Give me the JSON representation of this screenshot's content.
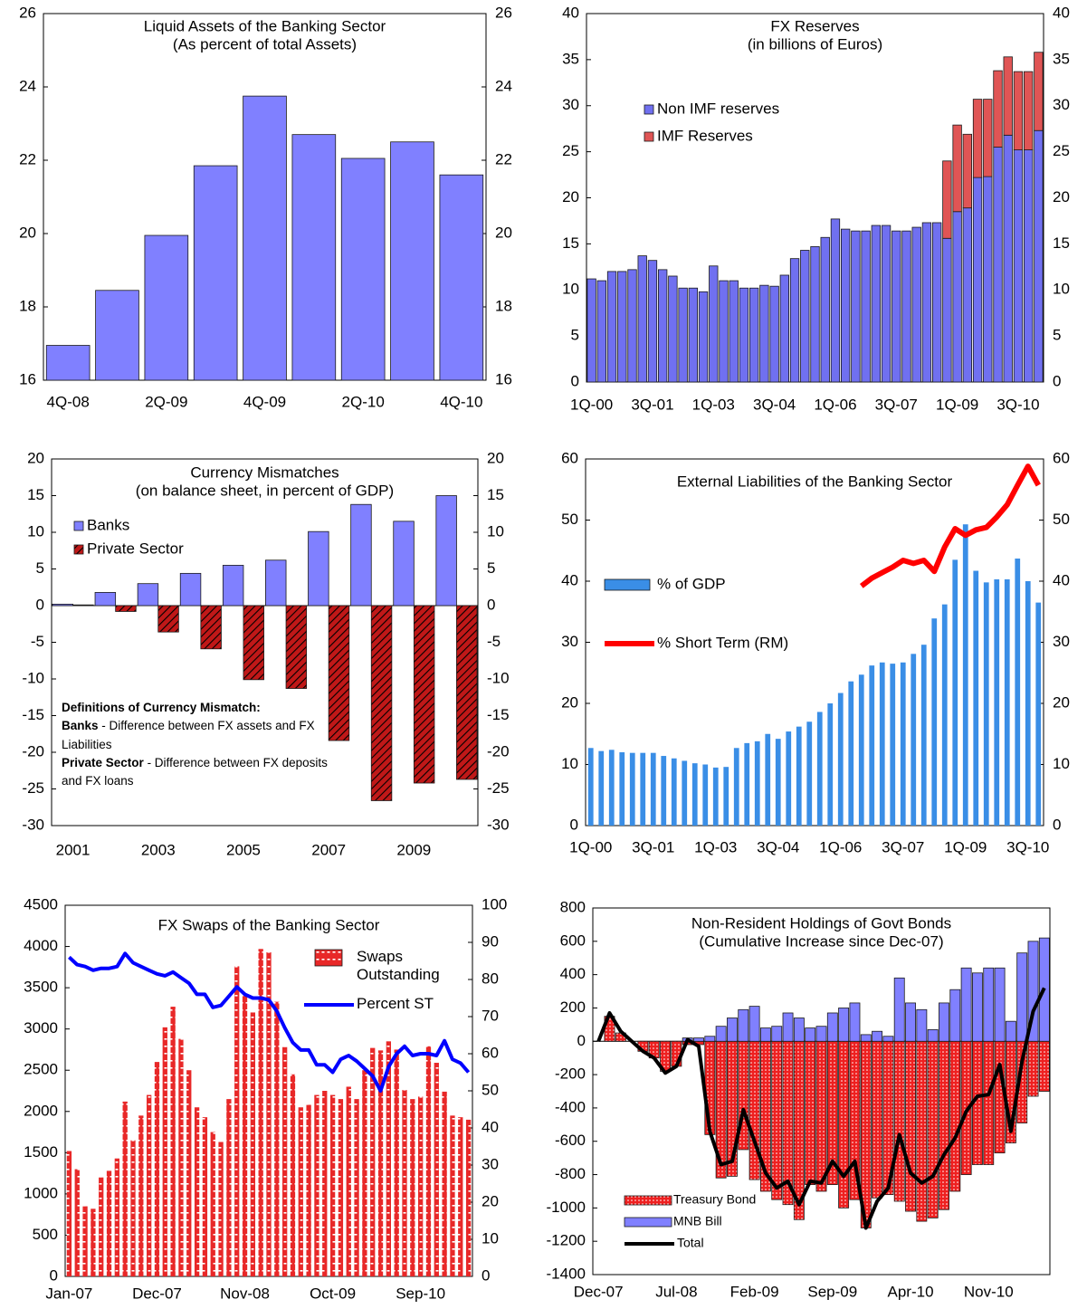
{
  "chart_data": [
    {
      "type": "bar",
      "title": "Liquid Assets of the Banking Sector",
      "subtitle": "(As percent of total Assets)",
      "categories": [
        "4Q-08",
        null,
        "2Q-09",
        null,
        "4Q-09",
        null,
        "2Q-10",
        null,
        "4Q-10"
      ],
      "values": [
        16.95,
        18.45,
        19.95,
        21.85,
        23.75,
        22.7,
        22.05,
        22.5,
        21.6
      ],
      "color": "#8080ff",
      "ylim": [
        16,
        26
      ],
      "yticks": [
        16,
        18,
        20,
        22,
        24,
        26
      ],
      "y2lim": [
        16,
        26
      ],
      "y2ticks": [
        16,
        18,
        20,
        22,
        24,
        26
      ]
    },
    {
      "type": "stacked_bar",
      "title": "FX Reserves",
      "subtitle": "(in billions of Euros)",
      "categories": [
        "1Q-00",
        null,
        null,
        null,
        null,
        null,
        "3Q-01",
        null,
        null,
        null,
        null,
        null,
        "1Q-03",
        null,
        null,
        null,
        null,
        null,
        "3Q-04",
        null,
        null,
        null,
        null,
        null,
        "1Q-06",
        null,
        null,
        null,
        null,
        null,
        "3Q-07",
        null,
        null,
        null,
        null,
        null,
        "1Q-09",
        null,
        null,
        null,
        null,
        null,
        "3Q-10",
        null,
        null
      ],
      "series": [
        {
          "name": "Non IMF reserves",
          "color": "#7070f0",
          "type": "bar",
          "values": [
            11.2,
            11.0,
            12.0,
            12.0,
            12.2,
            13.7,
            13.2,
            12.2,
            11.5,
            10.2,
            10.2,
            9.8,
            12.6,
            11.0,
            11.0,
            10.2,
            10.2,
            10.5,
            10.4,
            11.6,
            13.4,
            14.3,
            14.7,
            15.7,
            17.7,
            16.6,
            16.4,
            16.4,
            17.0,
            17.0,
            16.4,
            16.4,
            16.8,
            17.3,
            17.3,
            15.6,
            18.5,
            18.9,
            22.2,
            22.3,
            25.5,
            26.8,
            25.2,
            25.2,
            27.3
          ]
        },
        {
          "name": "IMF Reserves",
          "color": "#e05555",
          "type": "bar",
          "values": [
            null,
            null,
            null,
            null,
            null,
            null,
            null,
            null,
            null,
            null,
            null,
            null,
            null,
            null,
            null,
            null,
            null,
            null,
            null,
            null,
            null,
            null,
            null,
            null,
            null,
            null,
            null,
            null,
            null,
            null,
            null,
            null,
            null,
            null,
            null,
            8.4,
            9.4,
            8.0,
            8.5,
            8.4,
            8.3,
            8.5,
            8.5,
            8.5,
            8.5
          ]
        }
      ],
      "ylim": [
        0,
        40
      ],
      "yticks": [
        0,
        5,
        10,
        15,
        20,
        25,
        30,
        35,
        40
      ],
      "y2lim": [
        0,
        40
      ],
      "y2ticks": [
        0,
        5,
        10,
        15,
        20,
        25,
        30,
        35,
        40
      ]
    },
    {
      "type": "grouped_bar",
      "title": "Currency Mismatches",
      "subtitle": "(on balance sheet, in percent of GDP)",
      "categories": [
        "2001",
        null,
        "2003",
        null,
        "2005",
        null,
        "2007",
        null,
        "2009",
        null
      ],
      "series": [
        {
          "name": "Banks",
          "color": "#8080ff",
          "type": "bar",
          "values": [
            0.2,
            1.8,
            3.0,
            4.4,
            5.5,
            6.2,
            10.1,
            13.8,
            11.5,
            15.0
          ]
        },
        {
          "name": "Private Sector",
          "color": "#c01818",
          "type": "bar",
          "pattern": "hatch",
          "values": [
            0.1,
            -0.8,
            -3.6,
            -5.9,
            -10.1,
            -11.3,
            -18.4,
            -26.6,
            -24.2,
            -23.7
          ]
        }
      ],
      "annotation": {
        "heading": "Definitions of Currency Mismatch:",
        "notes": [
          {
            "term": "Banks",
            "text": "- Difference between FX assets and FX Liabilities"
          },
          {
            "term": "Private Sector",
            "text": "- Difference between FX deposits and FX loans"
          }
        ]
      },
      "ylim": [
        -30,
        20
      ],
      "yticks": [
        -30,
        -25,
        -20,
        -15,
        -10,
        -5,
        0,
        5,
        10,
        15,
        20
      ],
      "y2lim": [
        -30,
        20
      ],
      "y2ticks": [
        -30,
        -25,
        -20,
        -15,
        -10,
        -5,
        0,
        5,
        10,
        15,
        20
      ]
    },
    {
      "type": "combo",
      "title": "External Liabilities of the Banking Sector",
      "categories": [
        "1Q-00",
        null,
        null,
        null,
        null,
        null,
        "3Q-01",
        null,
        null,
        null,
        null,
        null,
        "1Q-03",
        null,
        null,
        null,
        null,
        null,
        "3Q-04",
        null,
        null,
        null,
        null,
        null,
        "1Q-06",
        null,
        null,
        null,
        null,
        null,
        "3Q-07",
        null,
        null,
        null,
        null,
        null,
        "1Q-09",
        null,
        null,
        null,
        null,
        null,
        "3Q-10",
        null
      ],
      "series": [
        {
          "name": "% of GDP",
          "color": "#3a8ee6",
          "type": "bar",
          "values": [
            12.7,
            12.2,
            12.4,
            12.0,
            11.9,
            11.9,
            11.9,
            11.4,
            11.0,
            10.6,
            10.2,
            10.0,
            9.5,
            9.6,
            12.7,
            13.5,
            13.8,
            15.0,
            14.2,
            15.4,
            16.2,
            17.0,
            18.6,
            20.0,
            21.7,
            23.6,
            24.7,
            26.2,
            26.7,
            26.5,
            26.7,
            28.1,
            29.6,
            33.9,
            36.2,
            43.5,
            49.3,
            41.7,
            39.8,
            40.3,
            40.3,
            43.7,
            40.0,
            36.5
          ]
        },
        {
          "name": "% Short Term (RM)",
          "color": "#ff0000",
          "type": "line",
          "values": [
            null,
            null,
            null,
            null,
            null,
            null,
            null,
            null,
            null,
            null,
            null,
            null,
            null,
            null,
            null,
            null,
            null,
            null,
            null,
            null,
            null,
            null,
            null,
            null,
            null,
            null,
            39.2,
            40.5,
            41.4,
            42.3,
            43.4,
            42.9,
            43.4,
            41.6,
            45.6,
            48.6,
            47.5,
            48.4,
            48.8,
            50.5,
            52.5,
            55.7,
            58.8,
            55.7
          ]
        }
      ],
      "ylim": [
        0,
        60
      ],
      "yticks": [
        0,
        10,
        20,
        30,
        40,
        50,
        60
      ],
      "y2lim": [
        0,
        60
      ],
      "y2ticks": [
        0,
        10,
        20,
        30,
        40,
        50,
        60
      ]
    },
    {
      "type": "combo",
      "title": "FX Swaps of the Banking Sector",
      "categories": [
        "Jan-07",
        null,
        null,
        null,
        null,
        null,
        null,
        null,
        null,
        null,
        null,
        "Dec-07",
        null,
        null,
        null,
        null,
        null,
        null,
        null,
        null,
        null,
        null,
        "Nov-08",
        null,
        null,
        null,
        null,
        null,
        null,
        null,
        null,
        null,
        null,
        "Oct-09",
        null,
        null,
        null,
        null,
        null,
        null,
        null,
        null,
        null,
        null,
        "Sep-10",
        null,
        null,
        null,
        null,
        null,
        null
      ],
      "series": [
        {
          "name": "Swaps Outstanding",
          "color": "#e82828",
          "type": "bar",
          "pattern": "dashed",
          "values": [
            1520,
            1300,
            850,
            820,
            1200,
            1280,
            1430,
            2120,
            1650,
            1950,
            2200,
            2600,
            3020,
            3270,
            2880,
            2500,
            2050,
            1930,
            1750,
            1630,
            2150,
            3760,
            3400,
            3200,
            3970,
            3930,
            3330,
            2780,
            2450,
            2050,
            2080,
            2200,
            2250,
            2200,
            2150,
            2300,
            2150,
            2500,
            2770,
            2740,
            2850,
            2750,
            2260,
            2150,
            2180,
            2790,
            2590,
            2240,
            1950,
            1930,
            1900
          ]
        },
        {
          "name": "Percent ST",
          "color": "#0000ff",
          "type": "line",
          "axis": "y2",
          "values": [
            86,
            84,
            83.5,
            82.5,
            83,
            83,
            83.5,
            87,
            84.5,
            83.5,
            82.5,
            81.5,
            81,
            82,
            80.5,
            79,
            76,
            76,
            72.5,
            73,
            75.5,
            78,
            76,
            75,
            75,
            74.5,
            71.5,
            67,
            63,
            61,
            61,
            57,
            57,
            55,
            58.5,
            59.5,
            58,
            56,
            54,
            50,
            56.5,
            60,
            62,
            59.5,
            60,
            60,
            59.5,
            63.5,
            58.5,
            57.5,
            55
          ]
        }
      ],
      "ylim": [
        0,
        4500
      ],
      "yticks": [
        0,
        500,
        1000,
        1500,
        2000,
        2500,
        3000,
        3500,
        4000,
        4500
      ],
      "y2lim": [
        0,
        100
      ],
      "y2ticks": [
        0,
        10,
        20,
        30,
        40,
        50,
        60,
        70,
        80,
        90,
        100
      ]
    },
    {
      "type": "combo",
      "stacked": true,
      "title": "Non-Resident Holdings of Govt Bonds",
      "subtitle": "(Cumulative Increase since Dec-07)",
      "categories": [
        "Dec-07",
        null,
        null,
        null,
        null,
        null,
        null,
        "Jul-08",
        null,
        null,
        null,
        null,
        null,
        null,
        "Feb-09",
        null,
        null,
        null,
        null,
        null,
        null,
        "Sep-09",
        null,
        null,
        null,
        null,
        null,
        null,
        "Apr-10",
        null,
        null,
        null,
        null,
        null,
        null,
        "Nov-10",
        null,
        null,
        null,
        null,
        null
      ],
      "series": [
        {
          "name": "Treasury Bond",
          "color": "#ee2020",
          "type": "bar",
          "pattern": "dotted",
          "values": [
            0,
            150,
            50,
            0,
            -60,
            -100,
            -180,
            -150,
            -20,
            -20,
            -560,
            -820,
            -810,
            -650,
            -830,
            -900,
            -950,
            -980,
            -1070,
            -860,
            -900,
            -860,
            -1000,
            -950,
            -1120,
            -940,
            -920,
            -960,
            -1020,
            -1080,
            -1060,
            -1010,
            -900,
            -800,
            -740,
            -740,
            -670,
            -610,
            -490,
            -330,
            -300
          ]
        },
        {
          "name": "MNB Bill",
          "color": "#8080ff",
          "type": "bar",
          "values": [
            null,
            null,
            null,
            null,
            null,
            null,
            null,
            null,
            20,
            20,
            30,
            90,
            140,
            190,
            210,
            80,
            90,
            170,
            140,
            80,
            90,
            170,
            200,
            230,
            40,
            60,
            30,
            380,
            230,
            190,
            70,
            230,
            310,
            440,
            410,
            440,
            440,
            120,
            530,
            600,
            620
          ]
        },
        {
          "name": "Total",
          "color": "#000000",
          "type": "line",
          "values": [
            0,
            170,
            60,
            0,
            -60,
            -100,
            -190,
            -150,
            10,
            -30,
            -540,
            -740,
            -720,
            -410,
            -600,
            -790,
            -880,
            -840,
            -980,
            -840,
            -850,
            -720,
            -810,
            -720,
            -1120,
            -960,
            -880,
            -560,
            -790,
            -850,
            -810,
            -680,
            -580,
            -420,
            -330,
            -320,
            -140,
            -540,
            -120,
            180,
            320
          ]
        }
      ],
      "ylim": [
        -1400,
        800
      ],
      "yticks": [
        -1400,
        -1200,
        -1000,
        -800,
        -600,
        -400,
        -200,
        0,
        200,
        400,
        600,
        800
      ]
    }
  ]
}
